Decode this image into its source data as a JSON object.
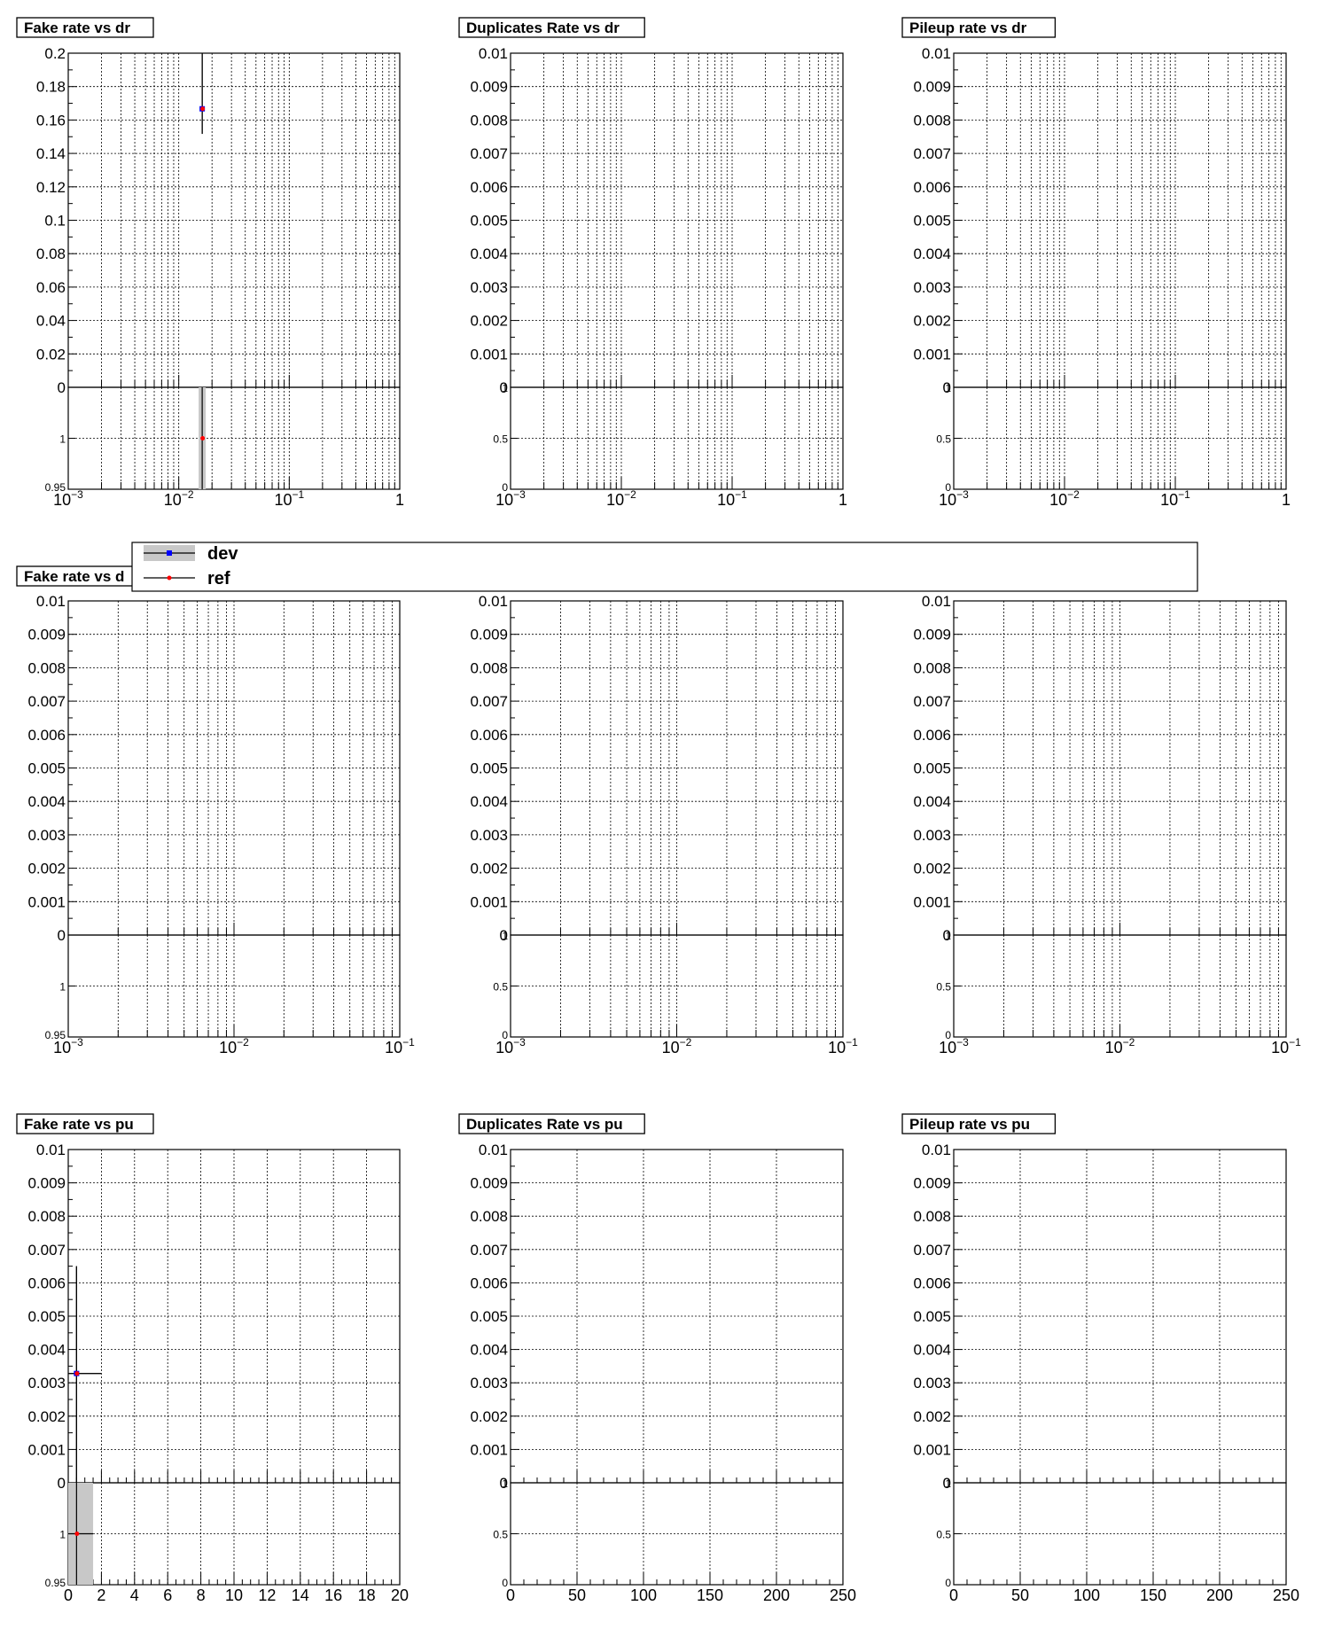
{
  "colors": {
    "dev_marker": "#0000ff",
    "ref_marker": "#ff0000",
    "dev_band": "#c8c8c8",
    "axis": "#000000",
    "grid": "#000000"
  },
  "legend": {
    "entries": [
      {
        "label": "dev",
        "marker": "square",
        "color": "#0000ff",
        "band": true
      },
      {
        "label": "ref",
        "marker": "circle",
        "color": "#ff0000",
        "band": false
      }
    ]
  },
  "chart_data": [
    {
      "type": "scatter",
      "title": "Fake rate vs dr",
      "x_scale": "log",
      "xlim": [
        0.001,
        1
      ],
      "xticks": [
        "10^-3",
        "10^-2",
        "10^-1",
        "1"
      ],
      "ylim": [
        0,
        0.2
      ],
      "yticks": [
        "0.2",
        "0.18",
        "0.16",
        "0.14",
        "0.12",
        "0.1",
        "0.08",
        "0.06",
        "0.04",
        "0.02",
        "0"
      ],
      "ratio_ylim": [
        0.95,
        1.05
      ],
      "ratio_yticks": [
        "1",
        "0.95"
      ],
      "grid": true,
      "series": [
        {
          "name": "dev",
          "points": [
            {
              "x": 0.0163,
              "y": 0.1667,
              "yerr_low": 0.1517,
              "yerr_high": 0.2
            }
          ]
        },
        {
          "name": "ref",
          "points": [
            {
              "x": 0.0163,
              "y": 0.1667,
              "yerr_low": 0.1517,
              "yerr_high": 0.2
            }
          ]
        }
      ],
      "ratio": [
        {
          "x": 0.0163,
          "y": 1
        }
      ]
    },
    {
      "type": "scatter",
      "title": "Duplicates Rate vs dr",
      "x_scale": "log",
      "xlim": [
        0.001,
        1
      ],
      "xticks": [
        "10^-3",
        "10^-2",
        "10^-1",
        "1"
      ],
      "ylim": [
        0,
        0.01
      ],
      "yticks": [
        "0.01",
        "0.009",
        "0.008",
        "0.007",
        "0.006",
        "0.005",
        "0.004",
        "0.003",
        "0.002",
        "0.001",
        "0"
      ],
      "ratio_ylim": [
        0,
        1
      ],
      "ratio_yticks": [
        "1",
        "0.5",
        "0"
      ],
      "grid": true,
      "series": [],
      "ratio": []
    },
    {
      "type": "scatter",
      "title": "Pileup rate vs dr",
      "x_scale": "log",
      "xlim": [
        0.001,
        1
      ],
      "xticks": [
        "10^-3",
        "10^-2",
        "10^-1",
        "1"
      ],
      "ylim": [
        0,
        0.01
      ],
      "yticks": [
        "0.01",
        "0.009",
        "0.008",
        "0.007",
        "0.006",
        "0.005",
        "0.004",
        "0.003",
        "0.002",
        "0.001",
        "0"
      ],
      "ratio_ylim": [
        0,
        1
      ],
      "ratio_yticks": [
        "1",
        "0.5",
        "0"
      ],
      "grid": true,
      "series": [],
      "ratio": []
    },
    {
      "type": "scatter",
      "title": "Fake rate vs d",
      "x_scale": "log",
      "xlim": [
        0.001,
        0.1
      ],
      "xticks": [
        "10^-3",
        "10^-2",
        "10^-1"
      ],
      "ylim": [
        0,
        0.01
      ],
      "yticks": [
        "0.01",
        "0.009",
        "0.008",
        "0.007",
        "0.006",
        "0.005",
        "0.004",
        "0.003",
        "0.002",
        "0.001",
        "0"
      ],
      "ratio_ylim": [
        0.95,
        1.05
      ],
      "ratio_yticks": [
        "1",
        "0.95"
      ],
      "grid": true,
      "series": [],
      "ratio": []
    },
    {
      "type": "scatter",
      "title": "",
      "x_scale": "log",
      "xlim": [
        0.001,
        0.1
      ],
      "xticks": [
        "10^-3",
        "10^-2",
        "10^-1"
      ],
      "ylim": [
        0,
        0.01
      ],
      "yticks": [
        "0.01",
        "0.009",
        "0.008",
        "0.007",
        "0.006",
        "0.005",
        "0.004",
        "0.003",
        "0.002",
        "0.001",
        "0"
      ],
      "ratio_ylim": [
        0,
        1
      ],
      "ratio_yticks": [
        "1",
        "0.5",
        "0"
      ],
      "grid": true,
      "series": [],
      "ratio": []
    },
    {
      "type": "scatter",
      "title": "",
      "x_scale": "log",
      "xlim": [
        0.001,
        0.1
      ],
      "xticks": [
        "10^-3",
        "10^-2",
        "10^-1"
      ],
      "ylim": [
        0,
        0.01
      ],
      "yticks": [
        "0.01",
        "0.009",
        "0.008",
        "0.007",
        "0.006",
        "0.005",
        "0.004",
        "0.003",
        "0.002",
        "0.001",
        "0"
      ],
      "ratio_ylim": [
        0,
        1
      ],
      "ratio_yticks": [
        "1",
        "0.5",
        "0"
      ],
      "grid": true,
      "series": [],
      "ratio": []
    },
    {
      "type": "scatter",
      "title": "Fake rate vs pu",
      "x_scale": "linear",
      "xlim": [
        0,
        20
      ],
      "xticks": [
        "0",
        "2",
        "4",
        "6",
        "8",
        "10",
        "12",
        "14",
        "16",
        "18",
        "20"
      ],
      "ylim": [
        0,
        0.01
      ],
      "yticks": [
        "0.01",
        "0.009",
        "0.008",
        "0.007",
        "0.006",
        "0.005",
        "0.004",
        "0.003",
        "0.002",
        "0.001",
        "0"
      ],
      "ratio_ylim": [
        0.95,
        1.05
      ],
      "ratio_yticks": [
        "1",
        "0.95"
      ],
      "grid": true,
      "series": [
        {
          "name": "dev",
          "points": [
            {
              "x": 0.5,
              "y": 0.00328,
              "yerr_low": 0,
              "yerr_high": 0.0065,
              "xerr": 1.5
            }
          ]
        },
        {
          "name": "ref",
          "points": [
            {
              "x": 0.5,
              "y": 0.00328,
              "yerr_low": 0,
              "yerr_high": 0.0065,
              "xerr": 1.5
            }
          ]
        }
      ],
      "ratio": [
        {
          "x": 0.5,
          "y": 1,
          "band_x": [
            0,
            1.5
          ]
        }
      ]
    },
    {
      "type": "scatter",
      "title": "Duplicates Rate vs pu",
      "x_scale": "linear",
      "xlim": [
        0,
        250
      ],
      "xticks": [
        "0",
        "50",
        "100",
        "150",
        "200",
        "250"
      ],
      "ylim": [
        0,
        0.01
      ],
      "yticks": [
        "0.01",
        "0.009",
        "0.008",
        "0.007",
        "0.006",
        "0.005",
        "0.004",
        "0.003",
        "0.002",
        "0.001",
        "0"
      ],
      "ratio_ylim": [
        0,
        1
      ],
      "ratio_yticks": [
        "1",
        "0.5",
        "0"
      ],
      "grid": true,
      "series": [],
      "ratio": []
    },
    {
      "type": "scatter",
      "title": "Pileup rate vs pu",
      "x_scale": "linear",
      "xlim": [
        0,
        250
      ],
      "xticks": [
        "0",
        "50",
        "100",
        "150",
        "200",
        "250"
      ],
      "ylim": [
        0,
        0.01
      ],
      "yticks": [
        "0.01",
        "0.009",
        "0.008",
        "0.007",
        "0.006",
        "0.005",
        "0.004",
        "0.003",
        "0.002",
        "0.001",
        "0"
      ],
      "ratio_ylim": [
        0,
        1
      ],
      "ratio_yticks": [
        "1",
        "0.5",
        "0"
      ],
      "grid": true,
      "series": [],
      "ratio": []
    }
  ]
}
